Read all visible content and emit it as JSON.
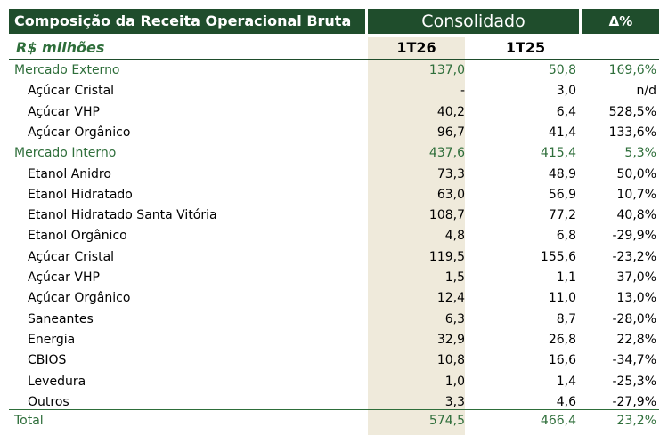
{
  "header": {
    "title": "Composição da Receita Operacional Bruta",
    "consolidated": "Consolidado",
    "change": "Δ%"
  },
  "subheader": {
    "unit": "R$ milhões",
    "period1": "1T26",
    "period2": "1T25"
  },
  "groups": [
    {
      "label": "Mercado Externo",
      "values": [
        "137,0",
        "50,8",
        "169,6%"
      ],
      "items": [
        [
          "Açúcar Cristal",
          "-",
          "3,0",
          "n/d"
        ],
        [
          "Açúcar VHP",
          "40,2",
          "6,4",
          "528,5%"
        ],
        [
          "Açúcar Orgânico",
          "96,7",
          "41,4",
          "133,6%"
        ]
      ]
    },
    {
      "label": "Mercado Interno",
      "values": [
        "437,6",
        "415,4",
        "5,3%"
      ],
      "items": [
        [
          "Etanol Anidro",
          "73,3",
          "48,9",
          "50,0%"
        ],
        [
          "Etanol Hidratado",
          "63,0",
          "56,9",
          "10,7%"
        ],
        [
          "Etanol Hidratado Santa Vitória",
          "108,7",
          "77,2",
          "40,8%"
        ],
        [
          "Etanol Orgânico",
          "4,8",
          "6,8",
          "-29,9%"
        ],
        [
          "Açúcar Cristal",
          "119,5",
          "155,6",
          "-23,2%"
        ],
        [
          "Açúcar VHP",
          "1,5",
          "1,1",
          "37,0%"
        ],
        [
          "Açúcar Orgânico",
          "12,4",
          "11,0",
          "13,0%"
        ],
        [
          "Saneantes",
          "6,3",
          "8,7",
          "-28,0%"
        ],
        [
          "Energia",
          "32,9",
          "26,8",
          "22,8%"
        ],
        [
          "CBIOS",
          "10,8",
          "16,6",
          "-34,7%"
        ],
        [
          "Levedura",
          "1,0",
          "1,4",
          "-25,3%"
        ],
        [
          "Outros",
          "3,3",
          "4,6",
          "-27,9%"
        ]
      ]
    }
  ],
  "total": {
    "label": "Total",
    "values": [
      "574,5",
      "466,4",
      "23,2%"
    ]
  }
}
